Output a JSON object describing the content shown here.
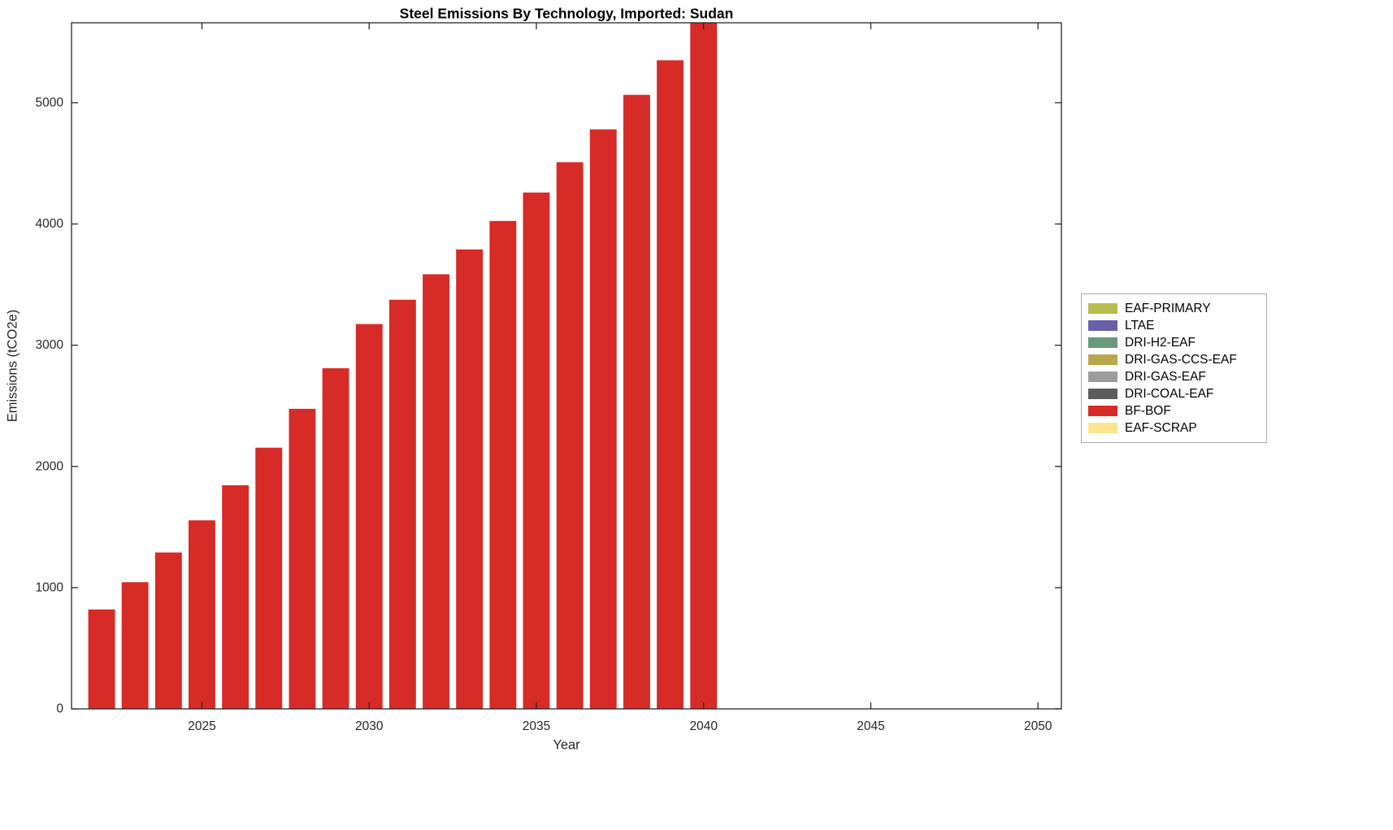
{
  "figure": {
    "title": "Steel Emissions By Technology, Imported: Sudan",
    "xlabel": "Year",
    "ylabel": "Emissions (tCO2e)"
  },
  "chart_data": {
    "type": "bar",
    "title": "Steel Emissions By Technology, Imported: Sudan",
    "xlabel": "Year",
    "ylabel": "Emissions (tCO2e)",
    "grid": false,
    "legend_position": "right-outside",
    "xlim": [
      2021.1,
      2050.7
    ],
    "ylim": [
      0,
      5660
    ],
    "xticks": [
      2025,
      2030,
      2035,
      2040,
      2045,
      2050
    ],
    "yticks": [
      0,
      1000,
      2000,
      3000,
      4000,
      5000
    ],
    "bar_width_fraction": 0.8,
    "categories": [
      2022,
      2023,
      2024,
      2025,
      2026,
      2027,
      2028,
      2029,
      2030,
      2031,
      2032,
      2033,
      2034,
      2035,
      2036,
      2037,
      2038,
      2039,
      2040
    ],
    "series": [
      {
        "name": "BF-BOF",
        "color": "#d62b27",
        "values": [
          820,
          1045,
          1290,
          1555,
          1845,
          2155,
          2475,
          2810,
          3175,
          3375,
          3585,
          3790,
          4025,
          4260,
          4510,
          4780,
          5065,
          5350,
          5660
        ]
      }
    ],
    "legend_entries": [
      {
        "label": "EAF-PRIMARY",
        "color": "#b8bd4f"
      },
      {
        "label": "LTAE",
        "color": "#6a5fa9"
      },
      {
        "label": "DRI-H2-EAF",
        "color": "#67997a"
      },
      {
        "label": "DRI-GAS-CCS-EAF",
        "color": "#b9a84b"
      },
      {
        "label": "DRI-GAS-EAF",
        "color": "#9c9c9c"
      },
      {
        "label": "DRI-COAL-EAF",
        "color": "#5c5c5c"
      },
      {
        "label": "BF-BOF",
        "color": "#d62b27"
      },
      {
        "label": "EAF-SCRAP",
        "color": "#ffe48f"
      }
    ]
  }
}
